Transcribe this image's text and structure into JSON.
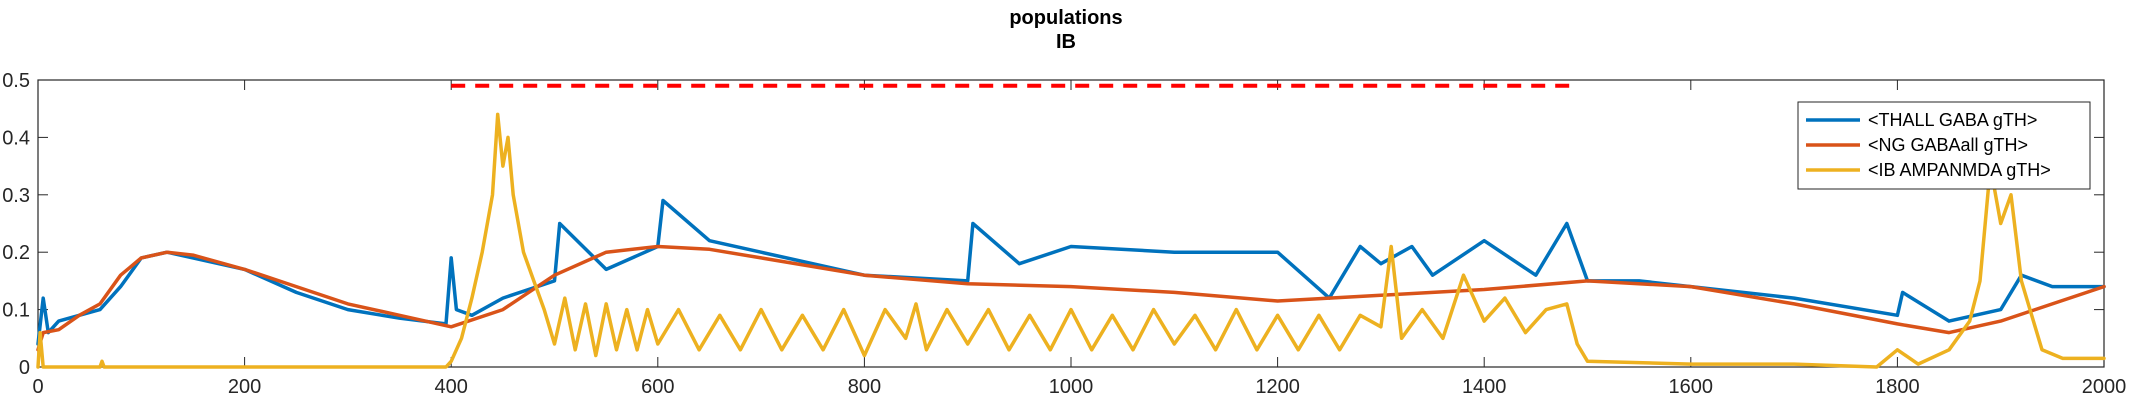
{
  "chart_data": {
    "type": "line",
    "title": [
      "populations",
      "IB"
    ],
    "xlim": [
      0,
      2000
    ],
    "ylim": [
      0,
      0.5
    ],
    "xticks": [
      0,
      200,
      400,
      600,
      800,
      1000,
      1200,
      1400,
      1600,
      1800,
      2000
    ],
    "yticks": [
      0,
      0.1,
      0.2,
      0.3,
      0.4,
      0.5
    ],
    "ytick_labels": [
      "0",
      "0.1",
      "0.2",
      "0.3",
      "0.4",
      "0.5"
    ],
    "grid": false,
    "legend_position": "top-right",
    "stimulus_marker": {
      "style": "dashed",
      "color": "#ff0000",
      "y": 0.49,
      "x_range": [
        400,
        1490
      ]
    },
    "series": [
      {
        "name": "<THALL GABA gTH>",
        "color": "#0072bd",
        "x": [
          0,
          5,
          10,
          20,
          40,
          60,
          80,
          100,
          125,
          150,
          200,
          250,
          300,
          350,
          395,
          400,
          405,
          420,
          450,
          500,
          505,
          550,
          600,
          605,
          650,
          700,
          800,
          900,
          905,
          950,
          1000,
          1100,
          1200,
          1250,
          1280,
          1300,
          1330,
          1350,
          1400,
          1450,
          1480,
          1500,
          1550,
          1600,
          1700,
          1800,
          1805,
          1850,
          1900,
          1920,
          1950,
          2000
        ],
        "values": [
          0.04,
          0.12,
          0.06,
          0.08,
          0.09,
          0.1,
          0.14,
          0.19,
          0.2,
          0.19,
          0.17,
          0.13,
          0.1,
          0.085,
          0.075,
          0.19,
          0.1,
          0.09,
          0.12,
          0.15,
          0.25,
          0.17,
          0.21,
          0.29,
          0.22,
          0.2,
          0.16,
          0.15,
          0.25,
          0.18,
          0.21,
          0.2,
          0.2,
          0.12,
          0.21,
          0.18,
          0.21,
          0.16,
          0.22,
          0.16,
          0.25,
          0.15,
          0.15,
          0.14,
          0.12,
          0.09,
          0.13,
          0.08,
          0.1,
          0.16,
          0.14,
          0.14
        ]
      },
      {
        "name": "<NG GABAall gTH>",
        "color": "#d95319",
        "x": [
          0,
          5,
          20,
          40,
          60,
          80,
          100,
          125,
          150,
          200,
          250,
          300,
          350,
          400,
          450,
          500,
          550,
          600,
          650,
          700,
          800,
          900,
          1000,
          1100,
          1200,
          1300,
          1400,
          1500,
          1600,
          1700,
          1800,
          1850,
          1900,
          1950,
          2000
        ],
        "values": [
          0.03,
          0.06,
          0.065,
          0.09,
          0.11,
          0.16,
          0.19,
          0.2,
          0.195,
          0.17,
          0.14,
          0.11,
          0.09,
          0.07,
          0.1,
          0.16,
          0.2,
          0.21,
          0.205,
          0.19,
          0.16,
          0.145,
          0.14,
          0.13,
          0.115,
          0.125,
          0.135,
          0.15,
          0.14,
          0.11,
          0.075,
          0.06,
          0.08,
          0.11,
          0.14
        ]
      },
      {
        "name": "<IB AMPANMDA gTH>",
        "color": "#edb120",
        "x": [
          0,
          2,
          5,
          60,
          62,
          64,
          200,
          395,
          400,
          410,
          420,
          430,
          440,
          445,
          450,
          455,
          460,
          470,
          480,
          490,
          500,
          510,
          520,
          530,
          540,
          550,
          560,
          570,
          580,
          590,
          600,
          620,
          640,
          660,
          680,
          700,
          720,
          740,
          760,
          780,
          800,
          820,
          840,
          850,
          860,
          880,
          900,
          920,
          940,
          960,
          980,
          1000,
          1020,
          1040,
          1060,
          1080,
          1100,
          1120,
          1140,
          1160,
          1180,
          1200,
          1220,
          1240,
          1260,
          1280,
          1300,
          1310,
          1320,
          1340,
          1360,
          1380,
          1400,
          1420,
          1440,
          1460,
          1480,
          1490,
          1500,
          1600,
          1700,
          1780,
          1800,
          1820,
          1850,
          1870,
          1880,
          1890,
          1900,
          1910,
          1920,
          1940,
          1960,
          2000
        ],
        "values": [
          0.0,
          0.06,
          0.0,
          0.0,
          0.01,
          0.0,
          0.0,
          0.0,
          0.01,
          0.05,
          0.12,
          0.2,
          0.3,
          0.44,
          0.35,
          0.4,
          0.3,
          0.2,
          0.15,
          0.1,
          0.04,
          0.12,
          0.03,
          0.11,
          0.02,
          0.11,
          0.03,
          0.1,
          0.03,
          0.1,
          0.04,
          0.1,
          0.03,
          0.09,
          0.03,
          0.1,
          0.03,
          0.09,
          0.03,
          0.1,
          0.02,
          0.1,
          0.05,
          0.11,
          0.03,
          0.1,
          0.04,
          0.1,
          0.03,
          0.09,
          0.03,
          0.1,
          0.03,
          0.09,
          0.03,
          0.1,
          0.04,
          0.09,
          0.03,
          0.1,
          0.03,
          0.09,
          0.03,
          0.09,
          0.03,
          0.09,
          0.07,
          0.21,
          0.05,
          0.1,
          0.05,
          0.16,
          0.08,
          0.12,
          0.06,
          0.1,
          0.11,
          0.04,
          0.01,
          0.005,
          0.005,
          0.0,
          0.03,
          0.005,
          0.03,
          0.08,
          0.15,
          0.35,
          0.25,
          0.3,
          0.15,
          0.03,
          0.015,
          0.015
        ]
      }
    ]
  }
}
